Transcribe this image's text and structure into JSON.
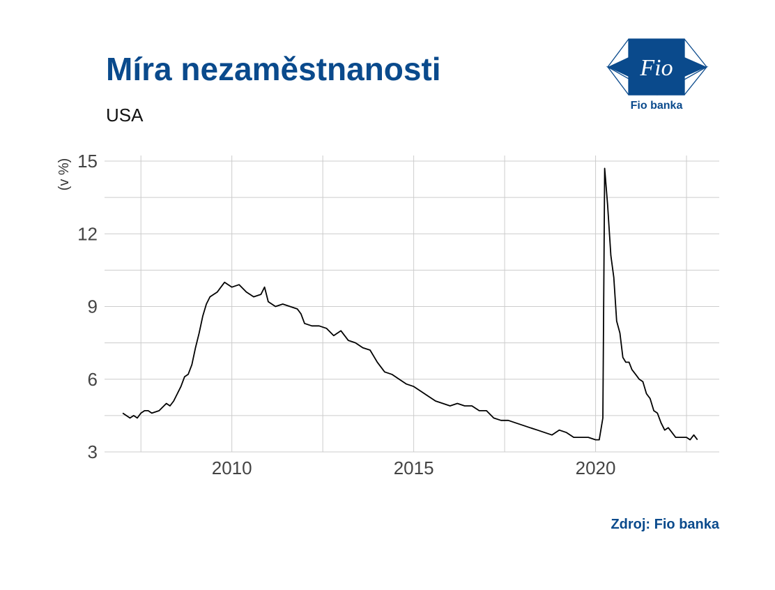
{
  "header": {
    "title": "Míra nezaměstnanosti",
    "subtitle": "USA"
  },
  "logo": {
    "mark_text": "Fio",
    "caption": "Fio banka",
    "color": "#0a4a8c"
  },
  "source": "Zdroj: Fio banka",
  "chart_data": {
    "type": "line",
    "title": "Míra nezaměstnanosti",
    "subtitle": "USA",
    "xlabel": "",
    "ylabel": "(v %)",
    "xlim": [
      2006.5,
      2023.4
    ],
    "ylim": [
      3,
      15
    ],
    "xticks": [
      2010,
      2015,
      2020
    ],
    "yticks": [
      3,
      6,
      9,
      12,
      15
    ],
    "grid": true,
    "line_color": "#000000",
    "series": [
      {
        "x": [
          2007.0,
          2007.1,
          2007.2,
          2007.3,
          2007.4,
          2007.5,
          2007.6,
          2007.7,
          2007.8,
          2008.0,
          2008.2,
          2008.3,
          2008.4,
          2008.5,
          2008.6,
          2008.7,
          2008.8,
          2008.9,
          2009.0,
          2009.1,
          2009.2,
          2009.3,
          2009.4,
          2009.5,
          2009.6,
          2009.7,
          2009.8,
          2009.9,
          2010.0,
          2010.2,
          2010.4,
          2010.6,
          2010.8,
          2010.9,
          2011.0,
          2011.2,
          2011.4,
          2011.6,
          2011.8,
          2011.9,
          2012.0,
          2012.2,
          2012.4,
          2012.6,
          2012.8,
          2012.9,
          2013.0,
          2013.2,
          2013.4,
          2013.6,
          2013.8,
          2014.0,
          2014.2,
          2014.4,
          2014.6,
          2014.8,
          2015.0,
          2015.2,
          2015.4,
          2015.6,
          2015.8,
          2016.0,
          2016.2,
          2016.4,
          2016.6,
          2016.8,
          2017.0,
          2017.2,
          2017.4,
          2017.6,
          2017.8,
          2018.0,
          2018.2,
          2018.4,
          2018.6,
          2018.8,
          2019.0,
          2019.2,
          2019.4,
          2019.6,
          2019.8,
          2020.0,
          2020.1,
          2020.2,
          2020.25,
          2020.33,
          2020.42,
          2020.5,
          2020.58,
          2020.67,
          2020.75,
          2020.83,
          2020.92,
          2021.0,
          2021.1,
          2021.2,
          2021.3,
          2021.4,
          2021.5,
          2021.6,
          2021.7,
          2021.8,
          2021.9,
          2022.0,
          2022.1,
          2022.2,
          2022.3,
          2022.4,
          2022.5,
          2022.6,
          2022.7,
          2022.8
        ],
        "y": [
          4.6,
          4.5,
          4.4,
          4.5,
          4.4,
          4.6,
          4.7,
          4.7,
          4.6,
          4.7,
          5.0,
          4.9,
          5.1,
          5.4,
          5.7,
          6.1,
          6.2,
          6.6,
          7.3,
          7.9,
          8.6,
          9.1,
          9.4,
          9.5,
          9.6,
          9.8,
          10.0,
          9.9,
          9.8,
          9.9,
          9.6,
          9.4,
          9.5,
          9.8,
          9.2,
          9.0,
          9.1,
          9.0,
          8.9,
          8.7,
          8.3,
          8.2,
          8.2,
          8.1,
          7.8,
          7.9,
          8.0,
          7.6,
          7.5,
          7.3,
          7.2,
          6.7,
          6.3,
          6.2,
          6.0,
          5.8,
          5.7,
          5.5,
          5.3,
          5.1,
          5.0,
          4.9,
          5.0,
          4.9,
          4.9,
          4.7,
          4.7,
          4.4,
          4.3,
          4.3,
          4.2,
          4.1,
          4.0,
          3.9,
          3.8,
          3.7,
          3.9,
          3.8,
          3.6,
          3.6,
          3.6,
          3.5,
          3.5,
          4.4,
          14.7,
          13.2,
          11.1,
          10.2,
          8.4,
          7.9,
          6.9,
          6.7,
          6.7,
          6.4,
          6.2,
          6.0,
          5.9,
          5.4,
          5.2,
          4.7,
          4.6,
          4.2,
          3.9,
          4.0,
          3.8,
          3.6,
          3.6,
          3.6,
          3.6,
          3.5,
          3.7,
          3.5
        ]
      }
    ]
  }
}
